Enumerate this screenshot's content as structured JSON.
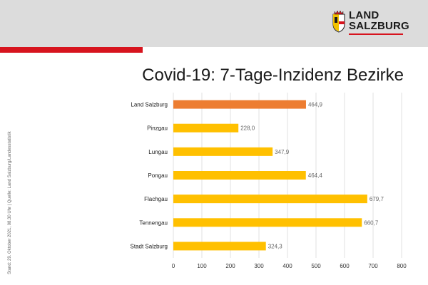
{
  "header": {
    "logo_line1": "LAND",
    "logo_line2": "SALZBURG",
    "accent_color": "#d7141e"
  },
  "side_note": "Stand: 29. Oktober 2021, 08.30 Uhr | Quelle: Land Salzburg/Landesstatistik",
  "chart_data": {
    "type": "bar",
    "orientation": "horizontal",
    "title": "Covid-19: 7-Tage-Inzidenz Bezirke",
    "categories": [
      "Land Salzburg",
      "Pinzgau",
      "Lungau",
      "Pongau",
      "Flachgau",
      "Tennengau",
      "Stadt Salzburg"
    ],
    "values": [
      464.9,
      228.0,
      347.9,
      464.4,
      679.7,
      660.7,
      324.3
    ],
    "value_labels": [
      "464,9",
      "228,0",
      "347,9",
      "464,4",
      "679,7",
      "660,7",
      "324,3"
    ],
    "colors": [
      "#ed7d31",
      "#ffc000",
      "#ffc000",
      "#ffc000",
      "#ffc000",
      "#ffc000",
      "#ffc000"
    ],
    "xlim": [
      0,
      800
    ],
    "xticks": [
      "0",
      "100",
      "200",
      "300",
      "400",
      "500",
      "600",
      "700",
      "800"
    ],
    "grid": true
  }
}
